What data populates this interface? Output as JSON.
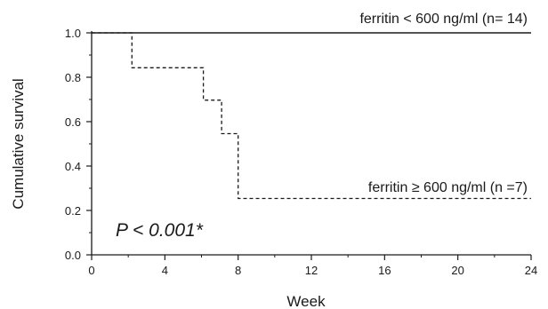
{
  "chart_data": {
    "type": "line",
    "subtype": "kaplan-meier-step",
    "xlabel": "Week",
    "ylabel": "Cumulative  survival",
    "xlim": [
      0,
      24
    ],
    "ylim": [
      0,
      1.0
    ],
    "xticks": [
      "0",
      "4",
      "8",
      "12",
      "16",
      "20",
      "24"
    ],
    "yticks": [
      "0.0",
      "0.2",
      "0.4",
      "0.6",
      "0.8",
      "1.0"
    ],
    "grid": false,
    "series": [
      {
        "label": "ferritin  < 600  ng/ml (n=  14)",
        "line_style": "solid",
        "x": [
          0,
          24
        ],
        "y": [
          1.0,
          1.0
        ]
      },
      {
        "label": "ferritin  ≥ 600  ng/ml (n =7)",
        "line_style": "dashed",
        "x": [
          0,
          2.2,
          2.2,
          6.1,
          6.1,
          7.1,
          7.1,
          8.0,
          8.0,
          24
        ],
        "y": [
          1.0,
          1.0,
          0.843,
          0.843,
          0.697,
          0.697,
          0.546,
          0.546,
          0.254,
          0.254
        ]
      }
    ],
    "annotation": "P < 0.001*"
  }
}
